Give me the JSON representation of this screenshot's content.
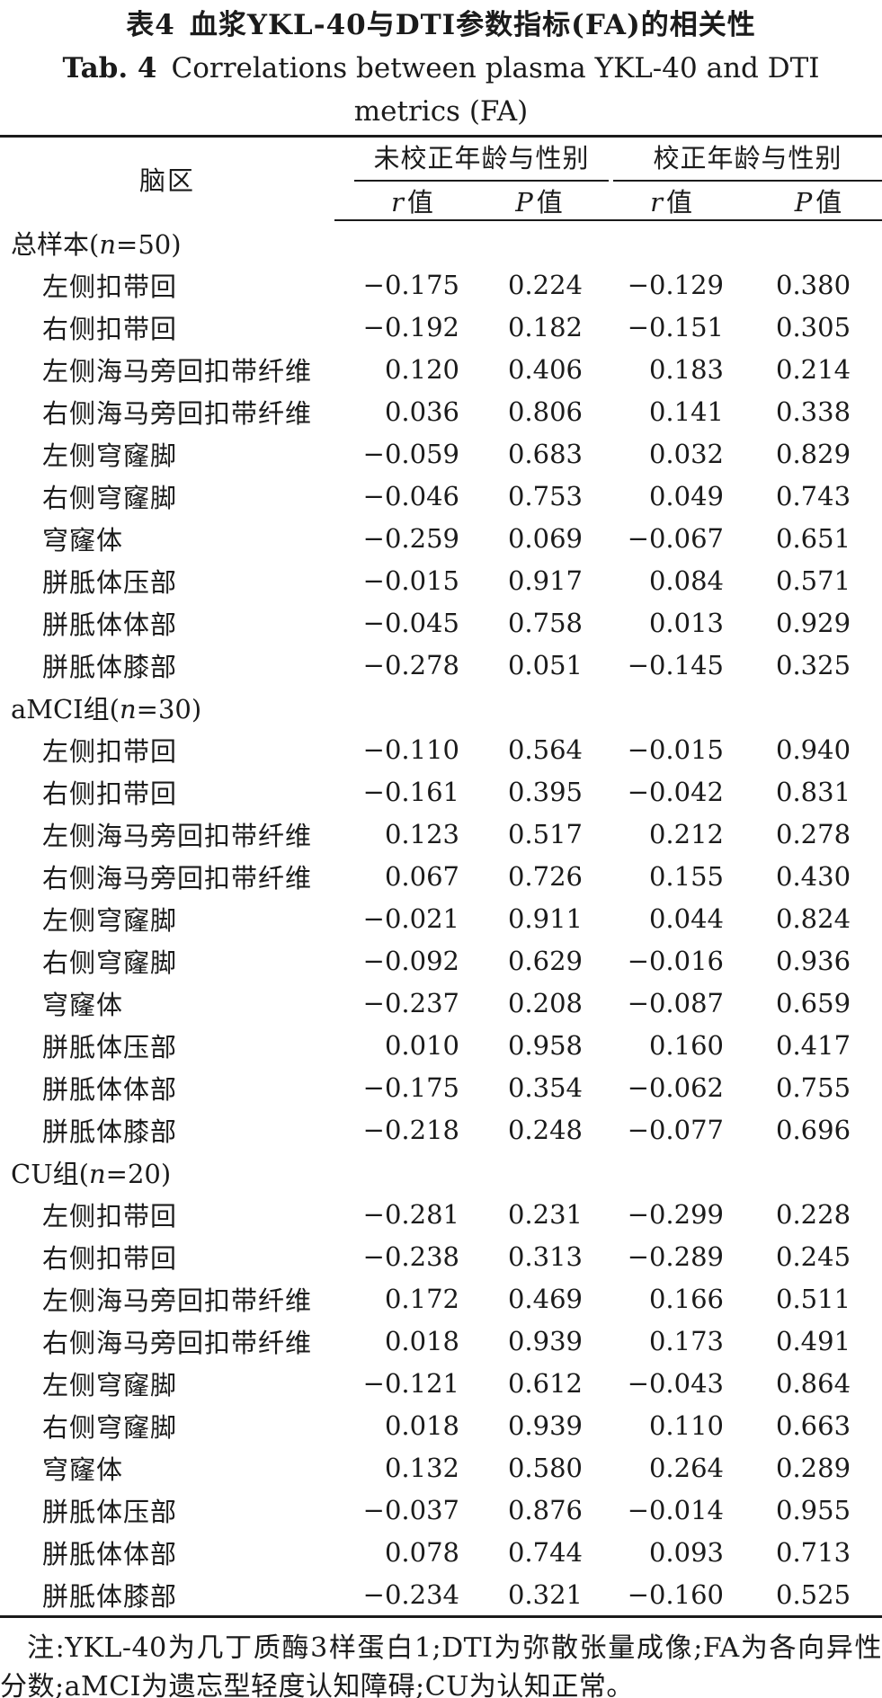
{
  "colors": {
    "ink": "#1b1b1b",
    "background": "#ffffff"
  },
  "titles": {
    "zh_tag": "表4",
    "zh_text": "血浆YKL-40与DTI参数指标(FA)的相关性",
    "en_tag": "Tab. 4",
    "en_text": "Correlations between plasma YKL-40 and DTI",
    "en_text2": "metrics (FA)"
  },
  "table": {
    "header": {
      "region": "脑区",
      "group_uncorrected": "未校正年龄与性别",
      "group_corrected": "校正年龄与性别",
      "r_symbol": "r",
      "p_symbol": "P",
      "value_word": "值"
    },
    "sections": [
      {
        "label": {
          "prefix": "总样本(",
          "var": "n",
          "suffix": "=50)"
        },
        "rows": [
          {
            "region": "左侧扣带回",
            "r1": "−0.175",
            "p1": "0.224",
            "r2": "−0.129",
            "p2": "0.380"
          },
          {
            "region": "右侧扣带回",
            "r1": "−0.192",
            "p1": "0.182",
            "r2": "−0.151",
            "p2": "0.305"
          },
          {
            "region": "左侧海马旁回扣带纤维",
            "r1": "0.120",
            "p1": "0.406",
            "r2": "0.183",
            "p2": "0.214"
          },
          {
            "region": "右侧海马旁回扣带纤维",
            "r1": "0.036",
            "p1": "0.806",
            "r2": "0.141",
            "p2": "0.338"
          },
          {
            "region": "左侧穹窿脚",
            "r1": "−0.059",
            "p1": "0.683",
            "r2": "0.032",
            "p2": "0.829"
          },
          {
            "region": "右侧穹窿脚",
            "r1": "−0.046",
            "p1": "0.753",
            "r2": "0.049",
            "p2": "0.743"
          },
          {
            "region": "穹窿体",
            "r1": "−0.259",
            "p1": "0.069",
            "r2": "−0.067",
            "p2": "0.651"
          },
          {
            "region": "胼胝体压部",
            "r1": "−0.015",
            "p1": "0.917",
            "r2": "0.084",
            "p2": "0.571"
          },
          {
            "region": "胼胝体体部",
            "r1": "−0.045",
            "p1": "0.758",
            "r2": "0.013",
            "p2": "0.929"
          },
          {
            "region": "胼胝体膝部",
            "r1": "−0.278",
            "p1": "0.051",
            "r2": "−0.145",
            "p2": "0.325"
          }
        ]
      },
      {
        "label": {
          "prefix": "aMCI组(",
          "var": "n",
          "suffix": "=30)"
        },
        "rows": [
          {
            "region": "左侧扣带回",
            "r1": "−0.110",
            "p1": "0.564",
            "r2": "−0.015",
            "p2": "0.940"
          },
          {
            "region": "右侧扣带回",
            "r1": "−0.161",
            "p1": "0.395",
            "r2": "−0.042",
            "p2": "0.831"
          },
          {
            "region": "左侧海马旁回扣带纤维",
            "r1": "0.123",
            "p1": "0.517",
            "r2": "0.212",
            "p2": "0.278"
          },
          {
            "region": "右侧海马旁回扣带纤维",
            "r1": "0.067",
            "p1": "0.726",
            "r2": "0.155",
            "p2": "0.430"
          },
          {
            "region": "左侧穹窿脚",
            "r1": "−0.021",
            "p1": "0.911",
            "r2": "0.044",
            "p2": "0.824"
          },
          {
            "region": "右侧穹窿脚",
            "r1": "−0.092",
            "p1": "0.629",
            "r2": "−0.016",
            "p2": "0.936"
          },
          {
            "region": "穹窿体",
            "r1": "−0.237",
            "p1": "0.208",
            "r2": "−0.087",
            "p2": "0.659"
          },
          {
            "region": "胼胝体压部",
            "r1": "0.010",
            "p1": "0.958",
            "r2": "0.160",
            "p2": "0.417"
          },
          {
            "region": "胼胝体体部",
            "r1": "−0.175",
            "p1": "0.354",
            "r2": "−0.062",
            "p2": "0.755"
          },
          {
            "region": "胼胝体膝部",
            "r1": "−0.218",
            "p1": "0.248",
            "r2": "−0.077",
            "p2": "0.696"
          }
        ]
      },
      {
        "label": {
          "prefix": "CU组(",
          "var": "n",
          "suffix": "=20)"
        },
        "rows": [
          {
            "region": "左侧扣带回",
            "r1": "−0.281",
            "p1": "0.231",
            "r2": "−0.299",
            "p2": "0.228"
          },
          {
            "region": "右侧扣带回",
            "r1": "−0.238",
            "p1": "0.313",
            "r2": "−0.289",
            "p2": "0.245"
          },
          {
            "region": "左侧海马旁回扣带纤维",
            "r1": "0.172",
            "p1": "0.469",
            "r2": "0.166",
            "p2": "0.511"
          },
          {
            "region": "右侧海马旁回扣带纤维",
            "r1": "0.018",
            "p1": "0.939",
            "r2": "0.173",
            "p2": "0.491"
          },
          {
            "region": "左侧穹窿脚",
            "r1": "−0.121",
            "p1": "0.612",
            "r2": "−0.043",
            "p2": "0.864"
          },
          {
            "region": "右侧穹窿脚",
            "r1": "0.018",
            "p1": "0.939",
            "r2": "0.110",
            "p2": "0.663"
          },
          {
            "region": "穹窿体",
            "r1": "0.132",
            "p1": "0.580",
            "r2": "0.264",
            "p2": "0.289"
          },
          {
            "region": "胼胝体压部",
            "r1": "−0.037",
            "p1": "0.876",
            "r2": "−0.014",
            "p2": "0.955"
          },
          {
            "region": "胼胝体体部",
            "r1": "0.078",
            "p1": "0.744",
            "r2": "0.093",
            "p2": "0.713"
          },
          {
            "region": "胼胝体膝部",
            "r1": "−0.234",
            "p1": "0.321",
            "r2": "−0.160",
            "p2": "0.525"
          }
        ]
      }
    ]
  },
  "note": {
    "text": "注:YKL-40为几丁质酶3样蛋白1;DTI为弥散张量成像;FA为各向异性分数;aMCI为遗忘型轻度认知障碍;CU为认知正常。"
  }
}
